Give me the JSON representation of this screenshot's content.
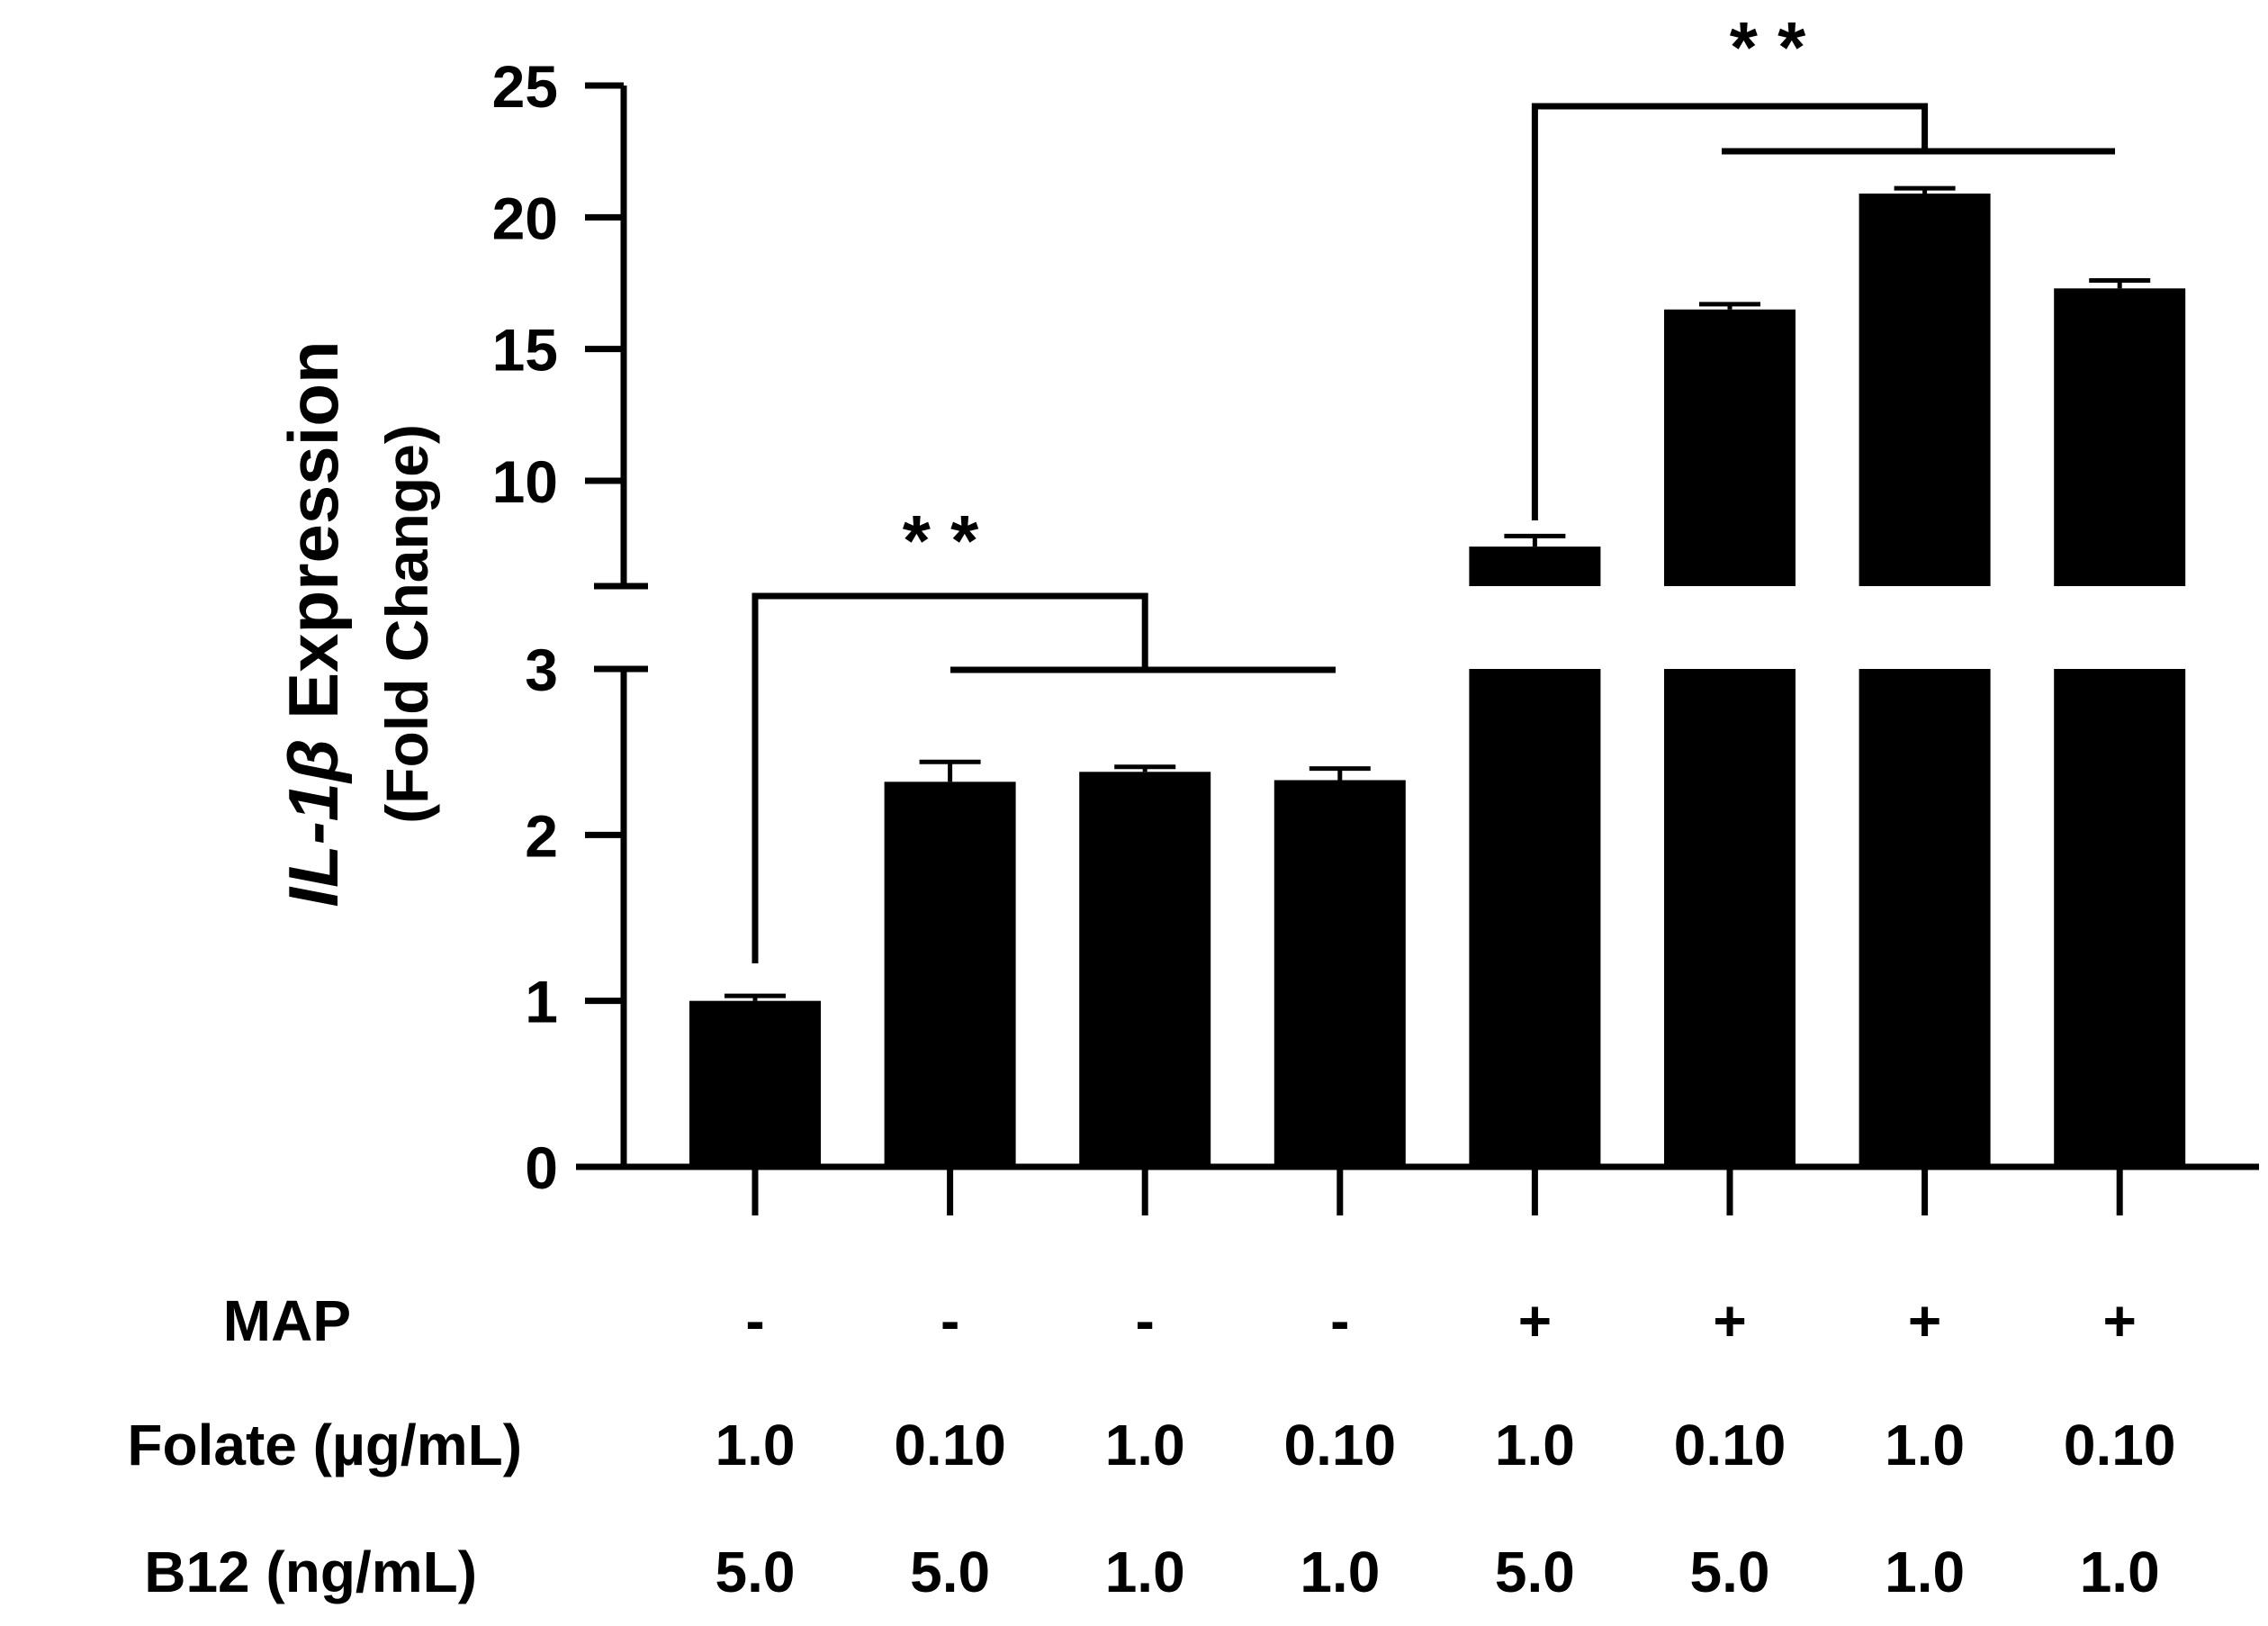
{
  "chart_data": {
    "type": "bar",
    "ylabel_gene": "IL-1β",
    "ylabel_rest": " Expression",
    "ylabel_sub": "(Fold Change)",
    "axis_break": [
      3,
      6
    ],
    "lower_segment": {
      "ylim": [
        0,
        3
      ],
      "ticks": [
        "0",
        "1",
        "2",
        "3"
      ]
    },
    "upper_segment": {
      "ylim": [
        6,
        25
      ],
      "ticks": [
        "10",
        "15",
        "20",
        "25"
      ]
    },
    "values": [
      1.0,
      2.32,
      2.38,
      2.33,
      7.5,
      16.5,
      20.9,
      17.3
    ],
    "errors": [
      0.03,
      0.12,
      0.03,
      0.07,
      0.4,
      0.2,
      0.2,
      0.3
    ],
    "row_labels": [
      "MAP",
      "Folate (µg/mL)",
      "B12 (ng/mL)"
    ],
    "rows": [
      [
        "-",
        "-",
        "-",
        "-",
        "+",
        "+",
        "+",
        "+"
      ],
      [
        "1.0",
        "0.10",
        "1.0",
        "0.10",
        "1.0",
        "0.10",
        "1.0",
        "0.10"
      ],
      [
        "5.0",
        "5.0",
        "1.0",
        "1.0",
        "5.0",
        "5.0",
        "1.0",
        "1.0"
      ]
    ],
    "significance": [
      {
        "label": "* *",
        "from": 0,
        "to": [
          1,
          3
        ],
        "segment": "lower"
      },
      {
        "label": "* *",
        "from": 4,
        "to": [
          5,
          7
        ],
        "segment": "upper"
      }
    ]
  }
}
